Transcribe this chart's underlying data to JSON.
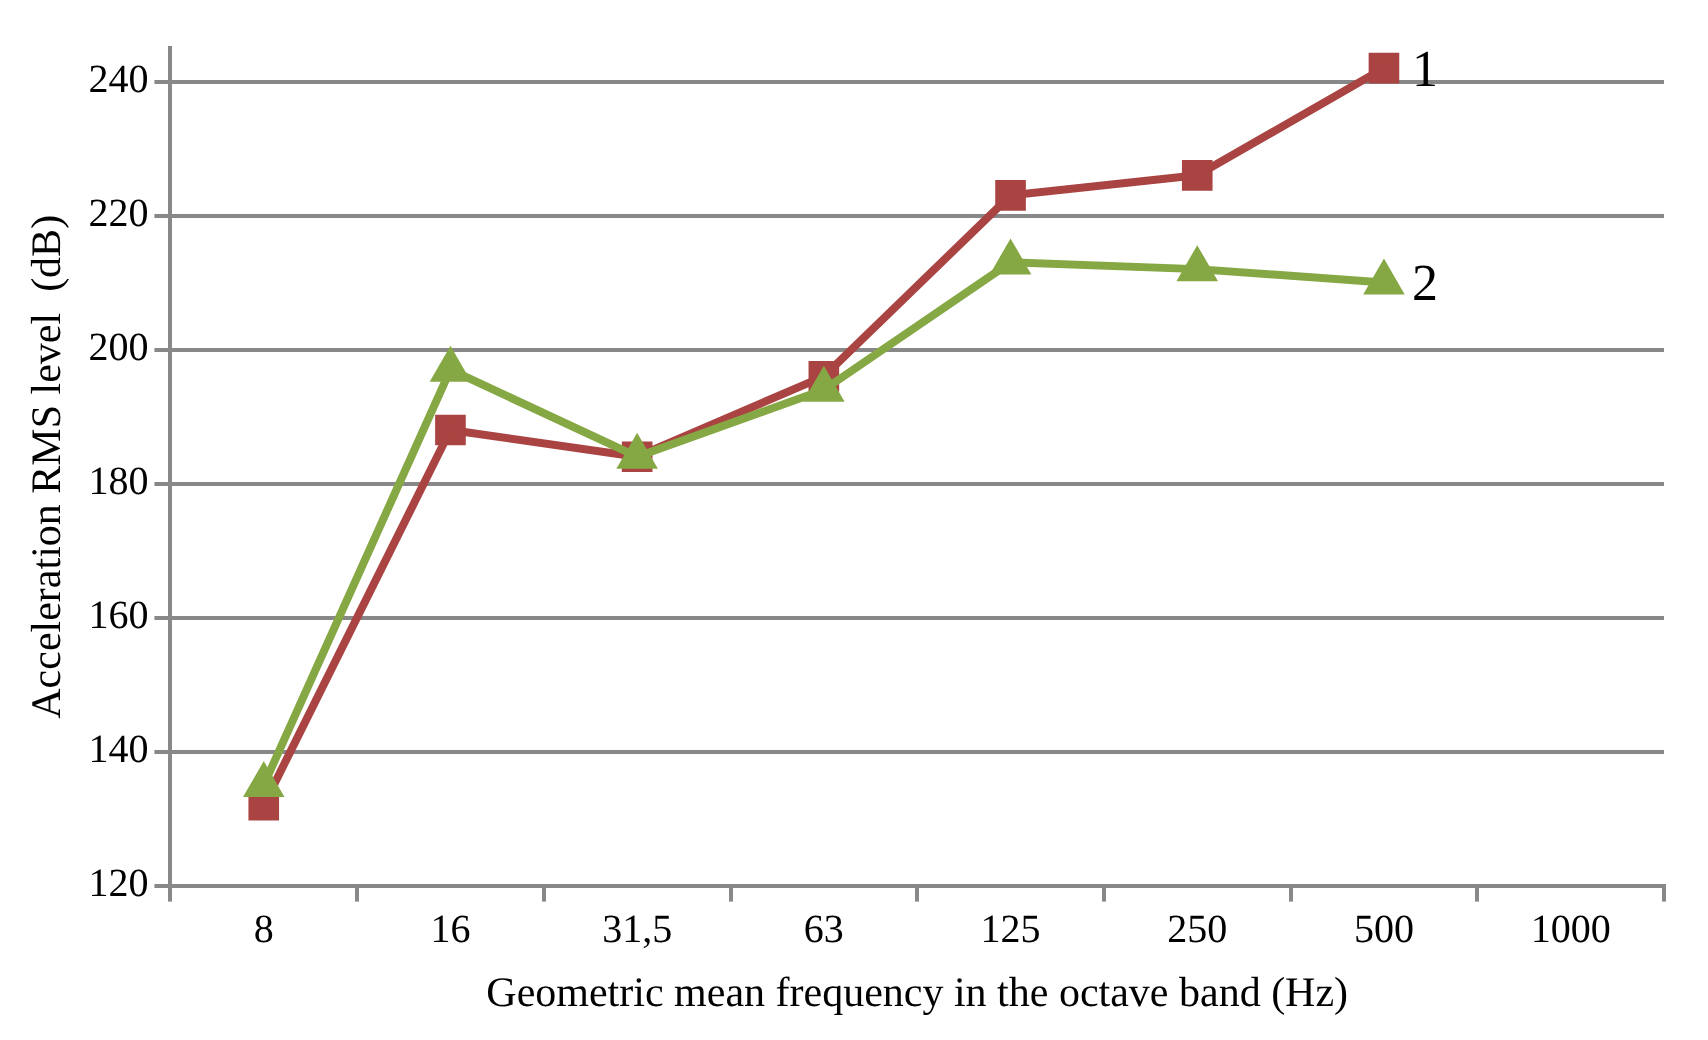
{
  "chart_data": {
    "type": "line",
    "xlabel": "Geometric mean frequency in the octave band (Hz)",
    "ylabel": "Acceleration RMS level  (dB)",
    "categories": [
      "8",
      "16",
      "31,5",
      "63",
      "125",
      "250",
      "500",
      "1000"
    ],
    "series": [
      {
        "name": "1",
        "color": "#a94442",
        "marker": "square",
        "values": [
          132,
          188,
          184,
          196,
          223,
          226,
          242,
          null
        ]
      },
      {
        "name": "2",
        "color": "#86a844",
        "marker": "triangle",
        "values": [
          135,
          197,
          184,
          194,
          213,
          212,
          210,
          null
        ]
      }
    ],
    "ylim": [
      120,
      245
    ],
    "yticks": [
      120,
      140,
      160,
      180,
      200,
      220,
      240
    ],
    "grid": "y",
    "legend": false,
    "line_style": "solid"
  }
}
